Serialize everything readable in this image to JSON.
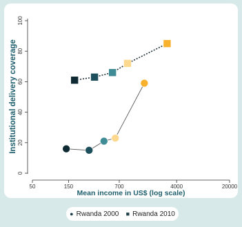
{
  "chart_data": {
    "type": "scatter",
    "title": "",
    "xlabel": "Mean income in US$ (log scale)",
    "ylabel": "Institutional delivery coverage",
    "x_scale": "log",
    "xlim": [
      50,
      20000
    ],
    "ylim": [
      0,
      100
    ],
    "x_ticks": [
      50,
      150,
      700,
      4000,
      20000
    ],
    "x_tick_labels": [
      "50",
      "150",
      "700",
      "4000",
      "20000"
    ],
    "y_ticks": [
      0,
      20,
      40,
      60,
      80,
      100
    ],
    "y_tick_labels": [
      "0",
      "20",
      "40",
      "60",
      "80",
      "100"
    ],
    "grid": false,
    "legend_position": "bottom",
    "quintile_colors": [
      "#0f2a33",
      "#1e4f5c",
      "#3f8c96",
      "#fcd98f",
      "#f7b12c"
    ],
    "series": [
      {
        "name": "Rwanda 2000",
        "marker": "circle",
        "line_style": "solid",
        "x": [
          140,
          280,
          440,
          620,
          1500
        ],
        "y": [
          16,
          15,
          21,
          23,
          59
        ]
      },
      {
        "name": "Rwanda 2010",
        "marker": "square",
        "line_style": "dotted",
        "x": [
          180,
          330,
          570,
          900,
          3000
        ],
        "y": [
          61,
          63,
          66,
          72,
          85
        ]
      }
    ]
  }
}
